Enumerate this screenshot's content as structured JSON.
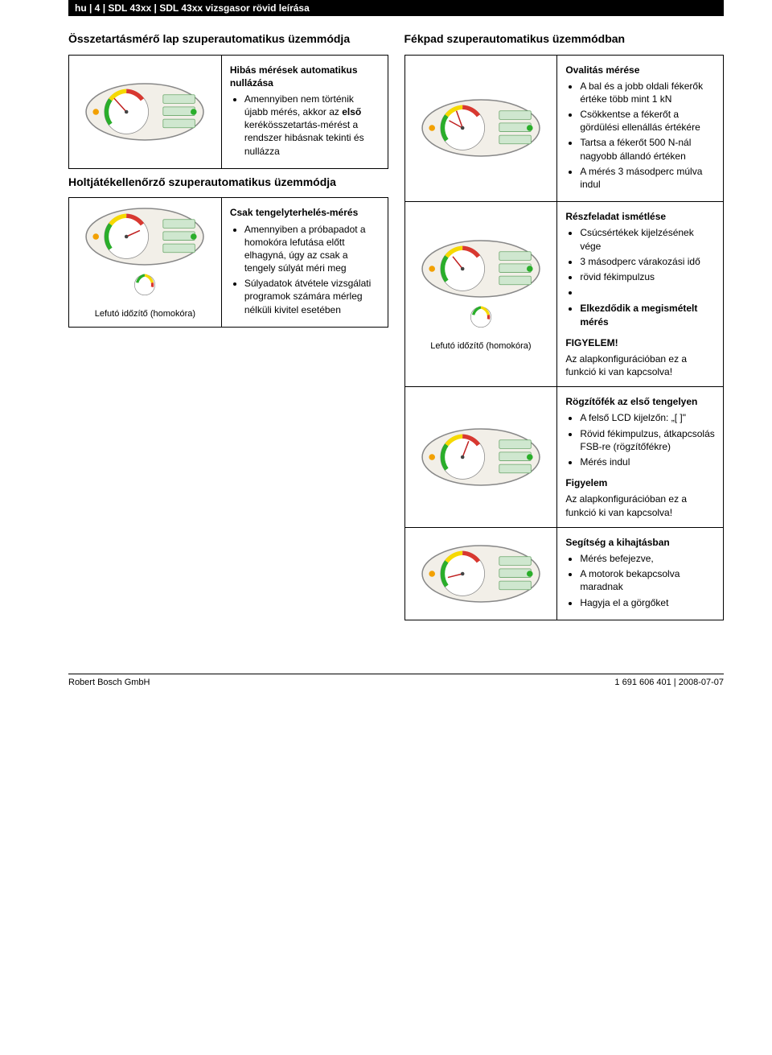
{
  "header": "hu | 4 | SDL 43xx | SDL 43xx vizsgasor rövid leírása",
  "left": {
    "title1": "Összetartásmérő lap szuperautomatikus üzemmódja",
    "row1": {
      "heading": "Hibás mérések automatikus nullázása",
      "items": [
        "Amennyiben nem történik újabb mérés, akkor az <b>első</b> kerékösszetartás-mérést a rendszer hibásnak tekinti és nullázza"
      ]
    },
    "title2": "Holtjátékellenőrző szuperautomatikus üzemmódja",
    "row2": {
      "caption": "Lefutó időzítő (homokóra)",
      "heading": "Csak tengelyterhelés-mérés",
      "items": [
        "Amennyiben a próbapadot a homokóra lefutása előtt elhagyná, úgy az csak a tengely súlyát méri meg",
        "Súlyadatok átvétele vizsgálati programok számára mérleg nélküli kivitel esetében"
      ]
    }
  },
  "right": {
    "title": "Fékpad szuperautomatikus üzemmódban",
    "r1": {
      "heading": "Ovalitás mérése",
      "items": [
        "A bal és a jobb oldali fékerők értéke több mint 1 kN",
        "Csökkentse a fékerőt a gördülési ellenállás értékére",
        "Tartsa a fékerőt 500 N-nál nagyobb állandó értéken",
        "A mérés 3 másodperc múlva indul"
      ]
    },
    "r2": {
      "caption": "Lefutó időzítő (homokóra)",
      "heading": "Részfeladat ismétlése",
      "items": [
        "Csúcsértékek kijelzésének vége",
        "3 másodperc várakozási idő",
        "rövid fékimpulzus",
        ""
      ],
      "bold_point": "Elkezdődik a megismételt mérés",
      "sub": "FIGYELEM!",
      "note": "Az alapkonfigurációban ez a funkció ki van kapcsolva!"
    },
    "r3": {
      "heading": "Rögzítőfék az első tengelyen",
      "items": [
        "A felső LCD kijelzőn: „[ ]\"",
        "Rövid fékimpulzus, átkapcsolás FSB-re (rögzítőfékre)",
        "Mérés indul"
      ],
      "sub": "Figyelem",
      "note": "Az alapkonfigurációban ez a funkció ki van kapcsolva!"
    },
    "r4": {
      "heading": "Segítség a kihajtásban",
      "items": [
        "Mérés befejezve,",
        "A motorok bekapcsolva maradnak",
        "Hagyja el a görgőket"
      ]
    }
  },
  "footer": {
    "left": "Robert Bosch GmbH",
    "right": "1 691 606 401 | 2008-07-07"
  },
  "gauge_svg": {
    "oval_fill": "#f2efe8",
    "oval_stroke": "#888",
    "arc_green": "#2aae2a",
    "arc_yellow": "#f6d900",
    "arc_red": "#d83830",
    "needle": "#c02020",
    "lcd_fill": "#cfe7cf",
    "lcd_stroke": "#6aa66a",
    "amber": "#f2a000",
    "green_dot": "#2aae2a"
  }
}
